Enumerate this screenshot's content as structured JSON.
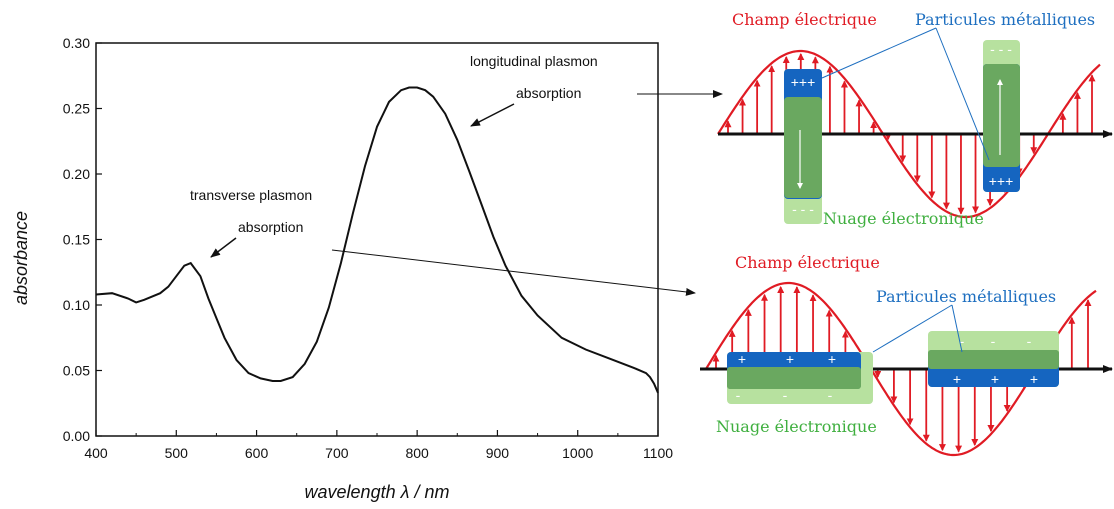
{
  "chart_data": {
    "type": "line",
    "xlabel": "wavelength λ / nm",
    "ylabel": "absorbance",
    "xlim": [
      400,
      1100
    ],
    "ylim": [
      0.0,
      0.3
    ],
    "x_ticks": [
      "400",
      "500",
      "600",
      "700",
      "800",
      "900",
      "1000",
      "1100"
    ],
    "y_ticks": [
      "0.00",
      "0.05",
      "0.10",
      "0.15",
      "0.20",
      "0.25",
      "0.30"
    ],
    "grid": false,
    "series": [
      {
        "x": [
          400,
          420,
          440,
          450,
          460,
          480,
          490,
          500,
          510,
          518,
          530,
          540,
          550,
          560,
          575,
          590,
          605,
          620,
          630,
          645,
          660,
          675,
          690,
          705,
          720,
          735,
          750,
          765,
          780,
          790,
          800,
          810,
          820,
          835,
          850,
          865,
          880,
          895,
          910,
          930,
          950,
          980,
          1010,
          1040,
          1070,
          1085,
          1090,
          1095,
          1100
        ],
        "y": [
          0.108,
          0.109,
          0.105,
          0.102,
          0.104,
          0.109,
          0.114,
          0.122,
          0.13,
          0.132,
          0.122,
          0.105,
          0.09,
          0.075,
          0.058,
          0.048,
          0.044,
          0.042,
          0.042,
          0.045,
          0.055,
          0.072,
          0.098,
          0.132,
          0.17,
          0.206,
          0.236,
          0.255,
          0.264,
          0.266,
          0.266,
          0.264,
          0.259,
          0.246,
          0.226,
          0.202,
          0.177,
          0.152,
          0.13,
          0.107,
          0.092,
          0.075,
          0.066,
          0.059,
          0.052,
          0.048,
          0.045,
          0.04,
          0.033
        ]
      }
    ],
    "annotations": [
      {
        "text": "longitudinal plasmon"
      },
      {
        "text": "absorption"
      },
      {
        "text": "transverse plasmon"
      },
      {
        "text": "absorption"
      }
    ]
  },
  "diagram": {
    "top": {
      "field_label": "Champ électrique",
      "particles_label": "Particules métalliques",
      "cloud_label": "Nuage électronique",
      "plus_sign": "+++",
      "minus_sign": "- - -"
    },
    "bottom": {
      "field_label": "Champ électrique",
      "particles_label": "Particules métalliques",
      "cloud_label": "Nuage électronique",
      "plus_sign": "+",
      "minus_sign": "-"
    },
    "colors": {
      "field": "#e01b24",
      "particle": "#1565c0",
      "cloud": "#7cc26a",
      "cloud_light": "#b7e19f",
      "field_text": "#e01b24",
      "particle_text": "#1e6fc0",
      "cloud_text": "#3faf3f"
    }
  }
}
